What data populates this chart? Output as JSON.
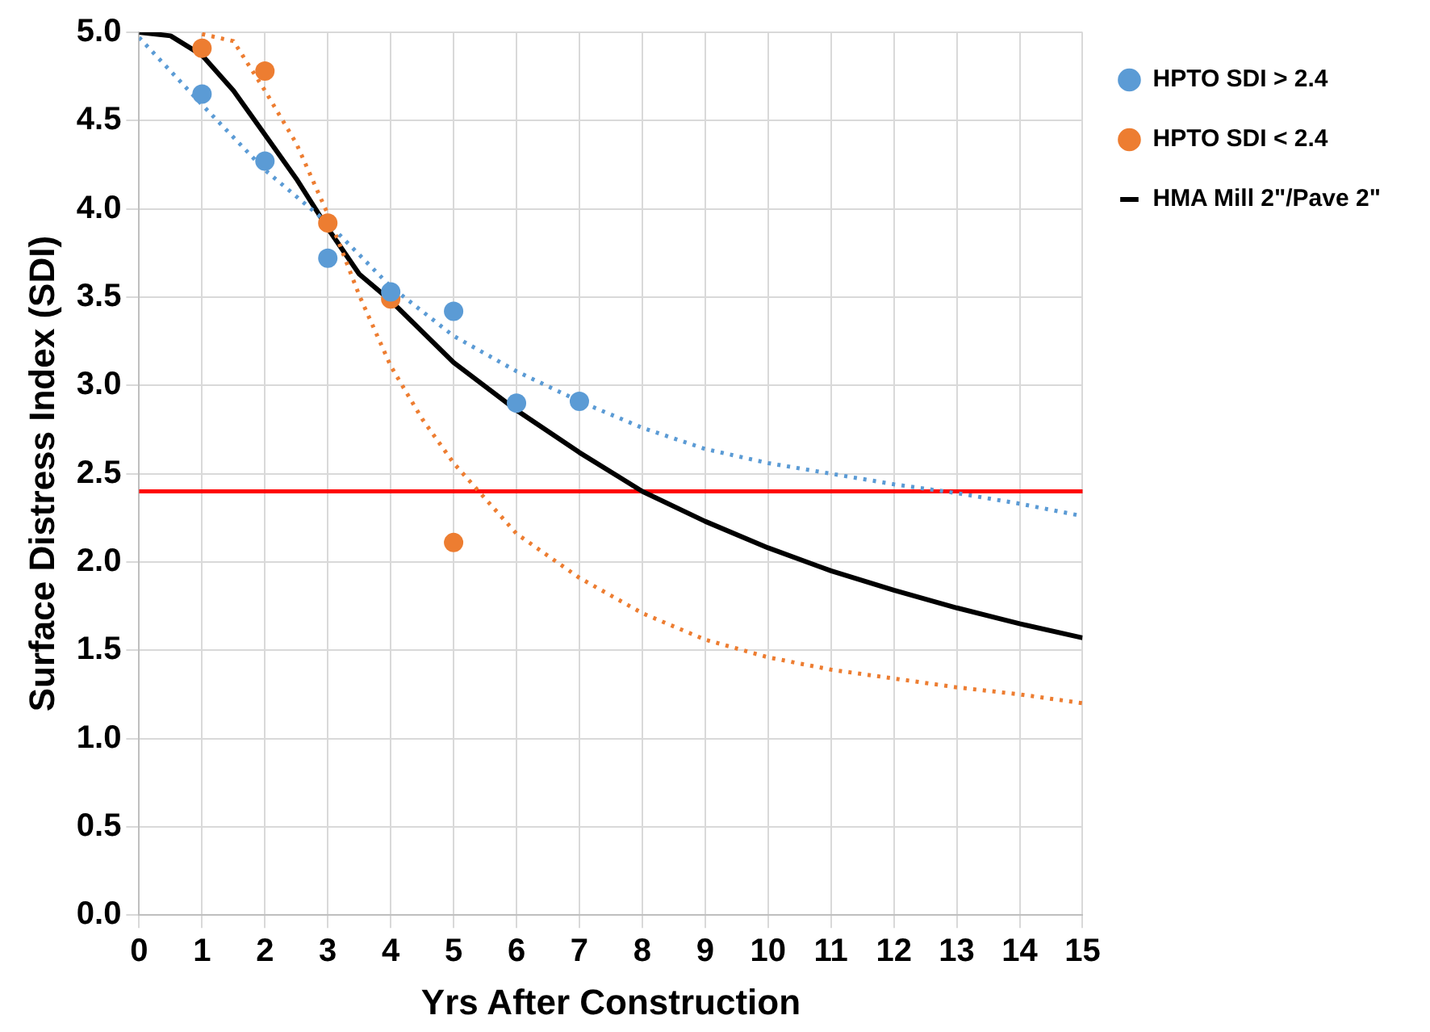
{
  "chart_data": {
    "type": "scatter",
    "xlabel": "Yrs After Construction",
    "ylabel": "Surface Distress Index (SDI)",
    "xlim": [
      0,
      15
    ],
    "xticks": [
      0,
      1,
      2,
      3,
      4,
      5,
      6,
      7,
      8,
      9,
      10,
      11,
      12,
      13,
      14,
      15
    ],
    "ylim": [
      0,
      5
    ],
    "yticks": [
      {
        "value": 0,
        "label": "0.0"
      },
      0.5,
      {
        "value": 1,
        "label": "1.0"
      },
      1.5,
      {
        "value": 2,
        "label": "2.0"
      },
      2.5,
      {
        "value": 3,
        "label": "3.0"
      },
      3.5,
      {
        "value": 4,
        "label": "4.0"
      },
      4.5,
      {
        "value": 5,
        "label": "5.0"
      }
    ],
    "grid": true,
    "legend": "top right",
    "ref_lines": [
      {
        "axis": "y",
        "value": 2.4,
        "color": "#ff0000"
      }
    ],
    "series": [
      {
        "name": "HPTO SDI > 2.4",
        "marker": "circle",
        "color": "#5b9bd5",
        "x": [
          1,
          2,
          3,
          4,
          5,
          6,
          7
        ],
        "values": [
          4.65,
          4.27,
          3.72,
          3.53,
          3.42,
          2.9,
          2.91
        ]
      },
      {
        "name": "HPTO SDI < 2.4",
        "marker": "circle",
        "color": "#ed7d31",
        "x": [
          1,
          2,
          3,
          4,
          5
        ],
        "values": [
          4.91,
          4.78,
          3.92,
          3.49,
          2.11
        ]
      },
      {
        "type": "line",
        "marker": "none",
        "line_style": "dotted",
        "color": "#5b9bd5",
        "x": [
          0,
          1,
          2,
          3,
          4,
          5,
          6,
          7,
          8,
          9,
          10,
          11,
          12,
          13,
          14,
          15
        ],
        "values": [
          4.97,
          4.59,
          4.22,
          3.92,
          3.56,
          3.28,
          3.08,
          2.91,
          2.76,
          2.64,
          2.56,
          2.5,
          2.44,
          2.39,
          2.33,
          2.26
        ]
      },
      {
        "type": "line",
        "marker": "none",
        "line_style": "dotted",
        "color": "#ed7d31",
        "x": [
          1,
          1.5,
          2,
          2.5,
          3,
          3.5,
          4,
          4.5,
          5,
          6,
          7,
          8,
          9,
          10,
          11,
          12,
          13,
          14,
          15
        ],
        "values": [
          4.99,
          4.95,
          4.67,
          4.37,
          3.97,
          3.51,
          3.11,
          2.81,
          2.56,
          2.16,
          1.91,
          1.71,
          1.56,
          1.46,
          1.39,
          1.34,
          1.29,
          1.25,
          1.2
        ]
      },
      {
        "name": "HMA Mill 2\"/Pave 2\"",
        "type": "line",
        "marker": "none",
        "line_style": "solid",
        "color": "#000000",
        "x": [
          0,
          0.5,
          1,
          1.5,
          2,
          2.5,
          3,
          3.5,
          4,
          5,
          6,
          7,
          8,
          9,
          10,
          11,
          12,
          13,
          14,
          15
        ],
        "values": [
          5.0,
          4.98,
          4.87,
          4.67,
          4.42,
          4.17,
          3.89,
          3.63,
          3.48,
          3.13,
          2.86,
          2.62,
          2.4,
          2.23,
          2.08,
          1.95,
          1.84,
          1.74,
          1.65,
          1.57
        ]
      }
    ]
  }
}
